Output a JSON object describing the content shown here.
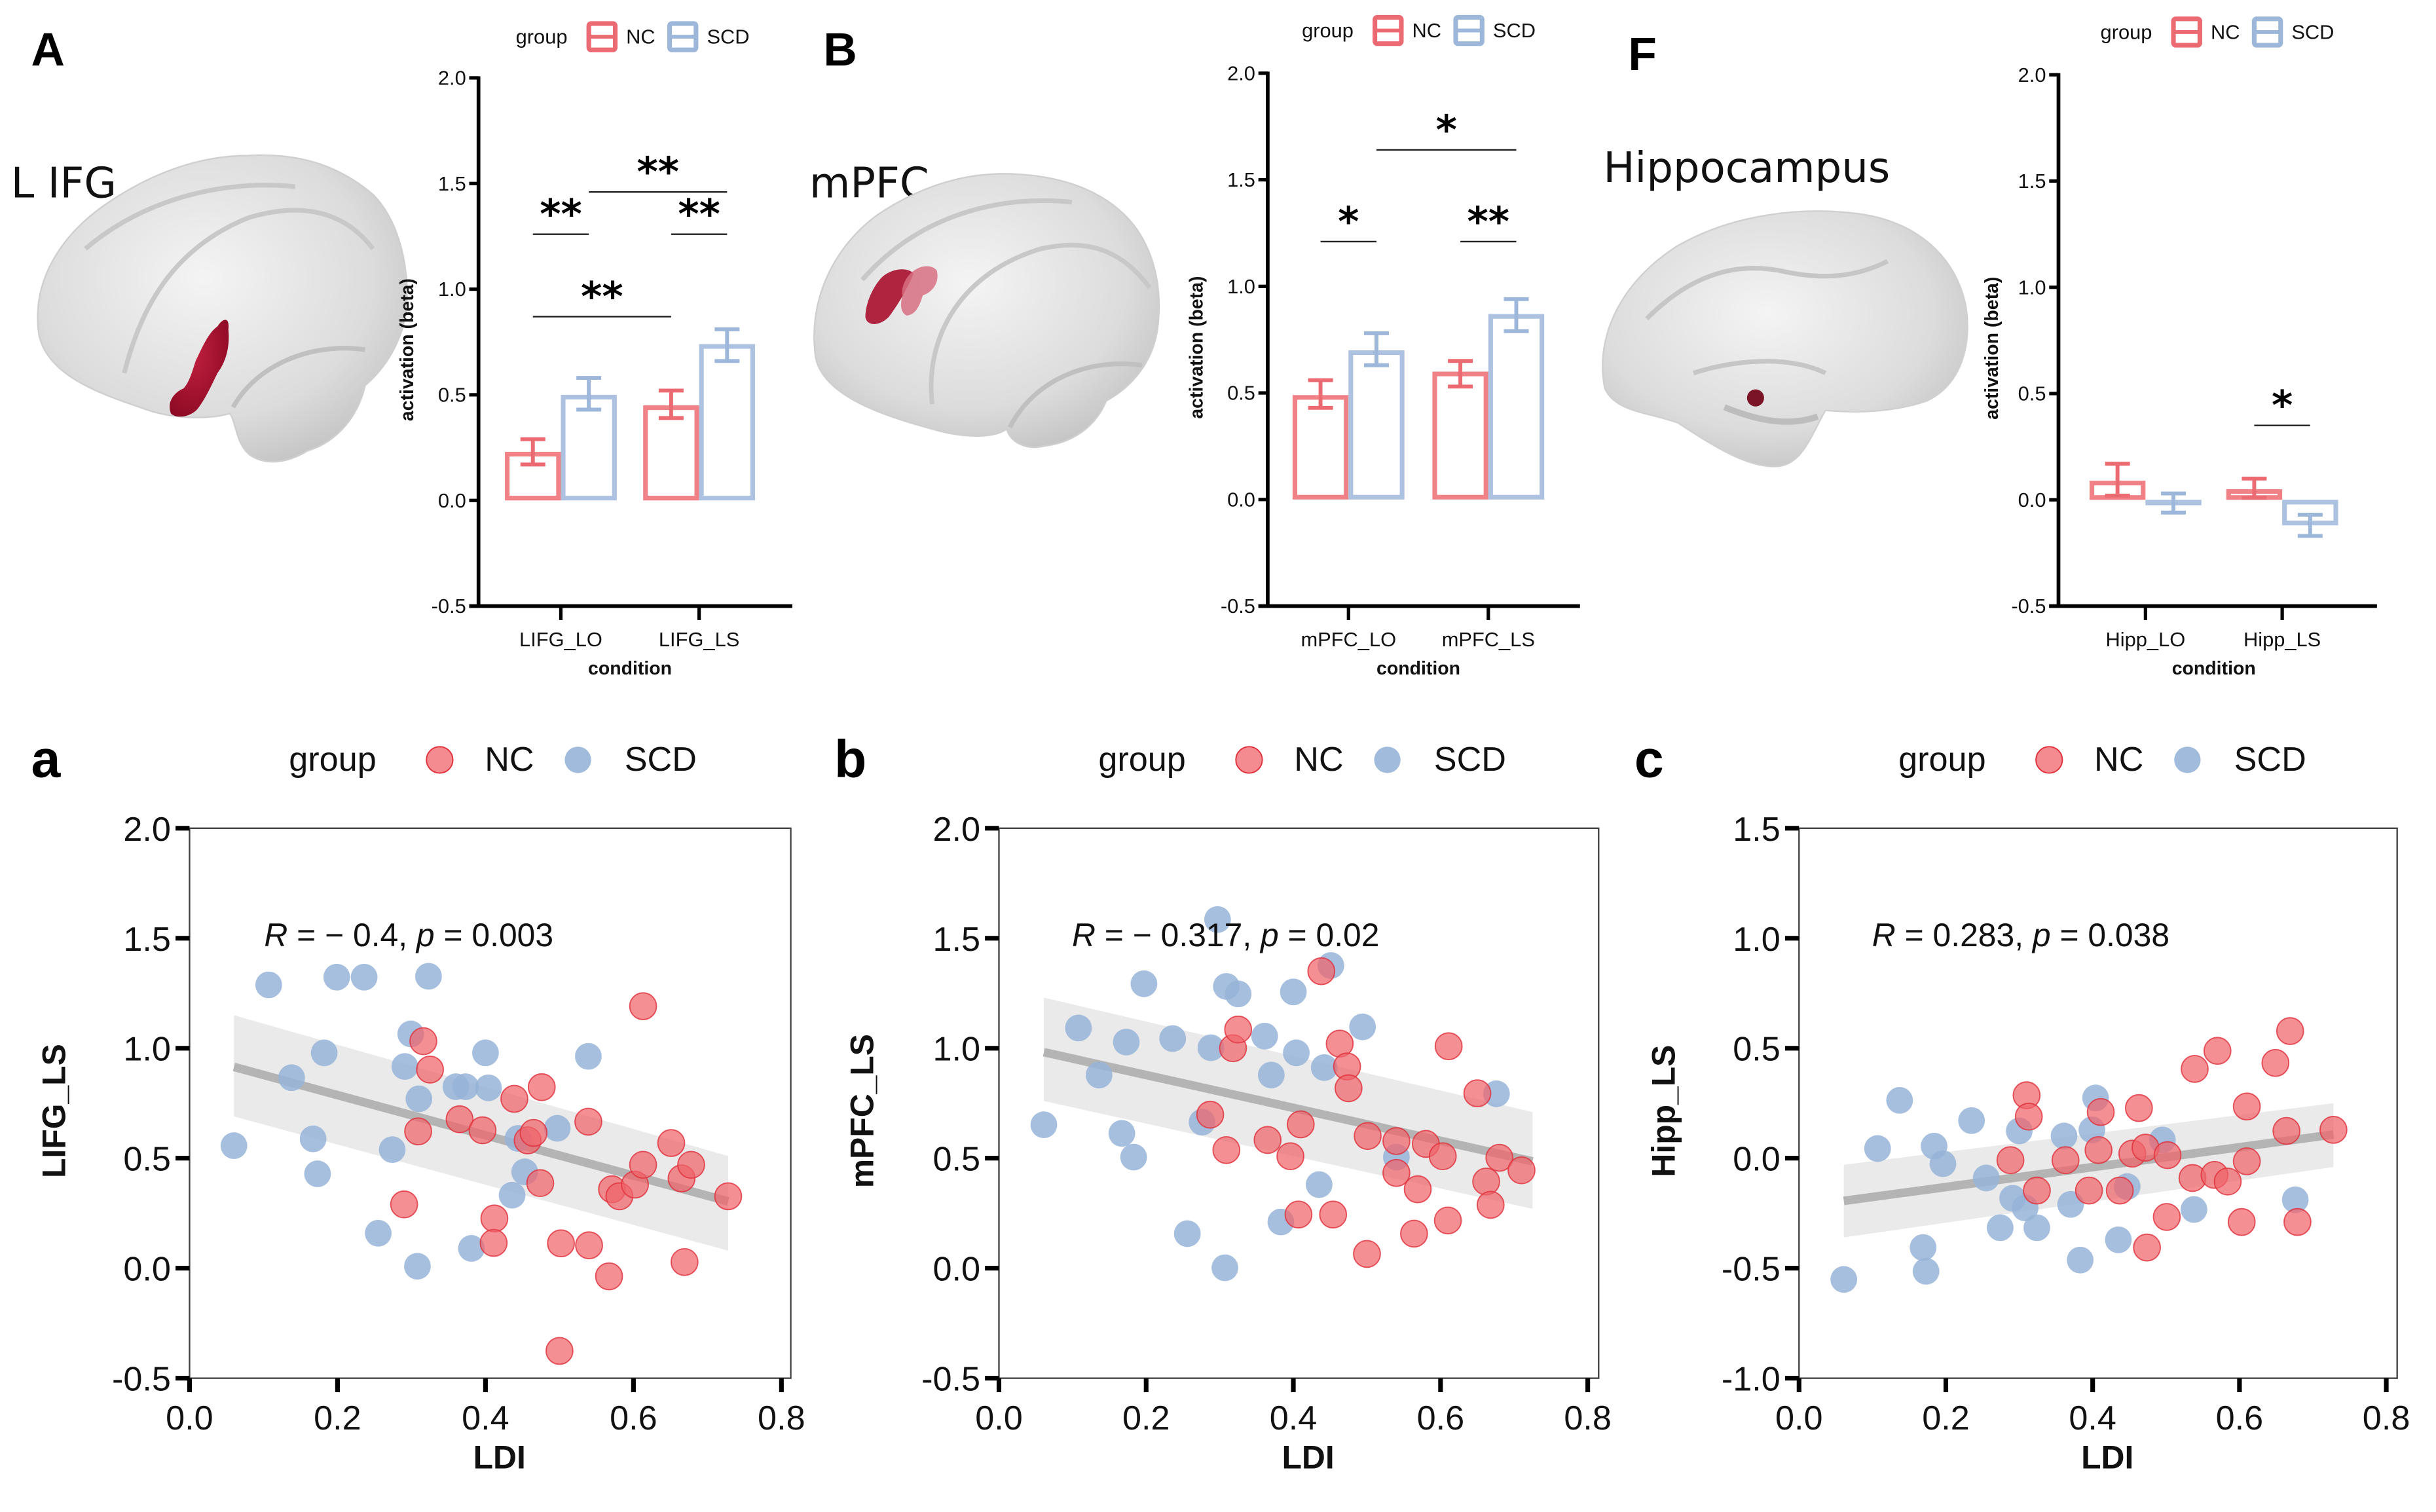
{
  "colors": {
    "nc": "#EC6B72",
    "nc_point": "#F0646B",
    "scd": "#9DB7DA",
    "scd_point": "#97B4D8",
    "fit_line": "#B4B4B4",
    "ci_band": "#E6E6E6",
    "roi": "#A8102E"
  },
  "legend": {
    "title": "group",
    "nc": "NC",
    "scd": "SCD"
  },
  "panels_top": [
    {
      "letter": "A",
      "region": "L IFG"
    },
    {
      "letter": "B",
      "region": "mPFC"
    },
    {
      "letter": "F",
      "region": "Hippocampus"
    }
  ],
  "panels_bottom": [
    {
      "letter": "a"
    },
    {
      "letter": "b"
    },
    {
      "letter": "c"
    }
  ],
  "chart_data": [
    {
      "id": "A",
      "type": "bar",
      "title": "L IFG",
      "xlabel": "condition",
      "ylabel": "activation (beta)",
      "ylim": [
        -0.5,
        2.0
      ],
      "yticks": [
        "-0.5",
        "0.0",
        "0.5",
        "1.0",
        "1.5",
        "2.0"
      ],
      "categories": [
        "LIFG_LO",
        "LIFG_LS"
      ],
      "legend_position": "top",
      "series": [
        {
          "name": "NC",
          "values": [
            0.23,
            0.45
          ],
          "err_low": [
            0.17,
            0.39
          ],
          "err_high": [
            0.29,
            0.52
          ]
        },
        {
          "name": "SCD",
          "values": [
            0.5,
            0.74
          ],
          "err_low": [
            0.43,
            0.66
          ],
          "err_high": [
            0.58,
            0.81
          ]
        }
      ],
      "significance": [
        {
          "label": "**",
          "from": "LIFG_LO:NC",
          "to": "LIFG_LO:SCD",
          "y": 1.26
        },
        {
          "label": "**",
          "from": "LIFG_LS:NC",
          "to": "LIFG_LS:SCD",
          "y": 1.26
        },
        {
          "label": "**",
          "from": "LIFG_LO:SCD",
          "to": "LIFG_LS:SCD",
          "y": 1.46
        },
        {
          "label": "**",
          "from": "LIFG_LO:NC",
          "to": "LIFG_LS:NC",
          "y": 0.87
        }
      ]
    },
    {
      "id": "B",
      "type": "bar",
      "title": "mPFC",
      "xlabel": "condition",
      "ylabel": "activation (beta)",
      "ylim": [
        -0.5,
        2.0
      ],
      "yticks": [
        "-0.5",
        "0.0",
        "0.5",
        "1.0",
        "1.5",
        "2.0"
      ],
      "categories": [
        "mPFC_LO",
        "mPFC_LS"
      ],
      "legend_position": "top",
      "series": [
        {
          "name": "NC",
          "values": [
            0.49,
            0.6
          ],
          "err_low": [
            0.43,
            0.53
          ],
          "err_high": [
            0.56,
            0.65
          ]
        },
        {
          "name": "SCD",
          "values": [
            0.7,
            0.87
          ],
          "err_low": [
            0.63,
            0.79
          ],
          "err_high": [
            0.78,
            0.94
          ]
        }
      ],
      "significance": [
        {
          "label": "*",
          "from": "mPFC_LO:NC",
          "to": "mPFC_LO:SCD",
          "y": 1.21
        },
        {
          "label": "**",
          "from": "mPFC_LS:NC",
          "to": "mPFC_LS:SCD",
          "y": 1.21
        },
        {
          "label": "*",
          "from": "mPFC_LO:SCD",
          "to": "mPFC_LS:SCD",
          "y": 1.64
        }
      ]
    },
    {
      "id": "F",
      "type": "bar",
      "title": "Hippocampus",
      "xlabel": "condition",
      "ylabel": "activation (beta)",
      "ylim": [
        -0.5,
        2.0
      ],
      "yticks": [
        "-0.5",
        "0.0",
        "0.5",
        "1.0",
        "1.5",
        "2.0"
      ],
      "categories": [
        "Hipp_LO",
        "Hipp_LS"
      ],
      "legend_position": "top",
      "series": [
        {
          "name": "NC",
          "values": [
            0.09,
            0.05
          ],
          "err_low": [
            0.02,
            0.01
          ],
          "err_high": [
            0.17,
            0.1
          ]
        },
        {
          "name": "SCD",
          "values": [
            -0.02,
            -0.12
          ],
          "err_low": [
            -0.06,
            -0.17
          ],
          "err_high": [
            0.03,
            -0.07
          ]
        }
      ],
      "significance": [
        {
          "label": "*",
          "from": "Hipp_LS:NC",
          "to": "Hipp_LS:SCD",
          "y": 0.35
        }
      ]
    },
    {
      "id": "a",
      "type": "scatter",
      "xlabel": "LDI",
      "ylabel": "LIFG_LS",
      "xlim": [
        0.0,
        0.8
      ],
      "ylim": [
        -0.5,
        2.0
      ],
      "xticks": [
        "0.0",
        "0.2",
        "0.4",
        "0.6",
        "0.8"
      ],
      "yticks": [
        "-0.5",
        "0.0",
        "0.5",
        "1.0",
        "1.5",
        "2.0"
      ],
      "annotation": {
        "R": "R",
        "mid": " = − 0.4, ",
        "p": "p",
        "end": " = 0.003"
      },
      "fit": {
        "x": [
          0.06,
          0.728
        ],
        "y": [
          0.915,
          0.304
        ],
        "ci_low": [
          0.69,
          0.08
        ],
        "ci_high": [
          1.15,
          0.51
        ]
      },
      "legend_position": "top",
      "series": [
        {
          "name": "SCD",
          "points": [
            [
              0.06,
              0.557
            ],
            [
              0.107,
              1.288
            ],
            [
              0.138,
              0.866
            ],
            [
              0.167,
              0.588
            ],
            [
              0.173,
              0.429
            ],
            [
              0.182,
              0.979
            ],
            [
              0.199,
              1.323
            ],
            [
              0.236,
              1.323
            ],
            [
              0.255,
              0.159
            ],
            [
              0.274,
              0.539
            ],
            [
              0.291,
              0.917
            ],
            [
              0.299,
              1.065
            ],
            [
              0.31,
              0.77
            ],
            [
              0.308,
              0.009
            ],
            [
              0.323,
              1.327
            ],
            [
              0.36,
              0.825
            ],
            [
              0.373,
              0.825
            ],
            [
              0.381,
              0.09
            ],
            [
              0.4,
              0.979
            ],
            [
              0.404,
              0.82
            ],
            [
              0.436,
              0.332
            ],
            [
              0.444,
              0.59
            ],
            [
              0.453,
              0.438
            ],
            [
              0.497,
              0.636
            ],
            [
              0.539,
              0.963
            ]
          ]
        },
        {
          "name": "NC",
          "points": [
            [
              0.29,
              0.29
            ],
            [
              0.309,
              0.622
            ],
            [
              0.316,
              1.032
            ],
            [
              0.325,
              0.903
            ],
            [
              0.365,
              0.677
            ],
            [
              0.396,
              0.627
            ],
            [
              0.412,
              0.226
            ],
            [
              0.411,
              0.115
            ],
            [
              0.439,
              0.77
            ],
            [
              0.457,
              0.581
            ],
            [
              0.465,
              0.615
            ],
            [
              0.474,
              0.387
            ],
            [
              0.476,
              0.823
            ],
            [
              0.502,
              0.113
            ],
            [
              0.5,
              -0.376
            ],
            [
              0.539,
              0.666
            ],
            [
              0.54,
              0.104
            ],
            [
              0.571,
              0.359
            ],
            [
              0.567,
              -0.037
            ],
            [
              0.581,
              0.327
            ],
            [
              0.602,
              0.38
            ],
            [
              0.613,
              0.47
            ],
            [
              0.613,
              1.191
            ],
            [
              0.651,
              0.569
            ],
            [
              0.665,
              0.408
            ],
            [
              0.669,
              0.028
            ],
            [
              0.678,
              0.47
            ],
            [
              0.728,
              0.327
            ]
          ]
        }
      ]
    },
    {
      "id": "b",
      "type": "scatter",
      "xlabel": "LDI",
      "ylabel": "mPFC_LS",
      "xlim": [
        0.0,
        0.8
      ],
      "ylim": [
        -0.5,
        2.0
      ],
      "xticks": [
        "0.0",
        "0.2",
        "0.4",
        "0.6",
        "0.8"
      ],
      "yticks": [
        "-0.5",
        "0.0",
        "0.5",
        "1.0",
        "1.5",
        "2.0"
      ],
      "annotation": {
        "R": "R",
        "mid": " = − 0.317, ",
        "p": "p",
        "end": " = 0.02"
      },
      "fit": {
        "x": [
          0.061,
          0.725
        ],
        "y": [
          0.982,
          0.486
        ],
        "ci_low": [
          0.76,
          0.27
        ],
        "ci_high": [
          1.23,
          0.71
        ]
      },
      "legend_position": "top",
      "series": [
        {
          "name": "SCD",
          "points": [
            [
              0.061,
              0.652
            ],
            [
              0.108,
              1.092
            ],
            [
              0.136,
              0.878
            ],
            [
              0.167,
              0.613
            ],
            [
              0.173,
              1.028
            ],
            [
              0.183,
              0.505
            ],
            [
              0.197,
              1.293
            ],
            [
              0.236,
              1.044
            ],
            [
              0.256,
              0.157
            ],
            [
              0.276,
              0.664
            ],
            [
              0.288,
              1.002
            ],
            [
              0.297,
              1.585
            ],
            [
              0.307,
              0.002
            ],
            [
              0.309,
              1.281
            ],
            [
              0.325,
              1.247
            ],
            [
              0.361,
              1.055
            ],
            [
              0.37,
              0.878
            ],
            [
              0.383,
              0.21
            ],
            [
              0.4,
              1.256
            ],
            [
              0.404,
              0.979
            ],
            [
              0.435,
              0.38
            ],
            [
              0.442,
              0.912
            ],
            [
              0.451,
              1.376
            ],
            [
              0.494,
              1.097
            ],
            [
              0.54,
              0.505
            ],
            [
              0.676,
              0.793
            ]
          ]
        },
        {
          "name": "NC",
          "points": [
            [
              0.287,
              0.698
            ],
            [
              0.309,
              0.537
            ],
            [
              0.318,
              1.0
            ],
            [
              0.325,
              1.085
            ],
            [
              0.365,
              0.583
            ],
            [
              0.396,
              0.509
            ],
            [
              0.407,
              0.244
            ],
            [
              0.41,
              0.654
            ],
            [
              0.438,
              1.35
            ],
            [
              0.454,
              0.244
            ],
            [
              0.463,
              1.021
            ],
            [
              0.473,
              0.917
            ],
            [
              0.475,
              0.818
            ],
            [
              0.5,
              0.065
            ],
            [
              0.501,
              0.601
            ],
            [
              0.54,
              0.433
            ],
            [
              0.54,
              0.578
            ],
            [
              0.564,
              0.157
            ],
            [
              0.569,
              0.359
            ],
            [
              0.58,
              0.565
            ],
            [
              0.603,
              0.509
            ],
            [
              0.61,
              0.217
            ],
            [
              0.611,
              1.009
            ],
            [
              0.65,
              0.795
            ],
            [
              0.662,
              0.394
            ],
            [
              0.668,
              0.288
            ],
            [
              0.68,
              0.502
            ],
            [
              0.71,
              0.445
            ]
          ]
        }
      ]
    },
    {
      "id": "c",
      "type": "scatter",
      "xlabel": "LDI",
      "ylabel": "Hipp_LS",
      "xlim": [
        0.0,
        0.8
      ],
      "ylim": [
        -1.0,
        1.5
      ],
      "xticks": [
        "0.0",
        "0.2",
        "0.4",
        "0.6",
        "0.8"
      ],
      "yticks": [
        "-1.0",
        "-0.5",
        "0.0",
        "0.5",
        "1.0",
        "1.5"
      ],
      "annotation": {
        "R": "R",
        "mid": " = 0.283, ",
        "p": "p",
        "end": " = 0.038"
      },
      "fit": {
        "x": [
          0.061,
          0.728
        ],
        "y": [
          -0.194,
          0.108
        ],
        "ci_low": [
          -0.36,
          -0.04
        ],
        "ci_high": [
          -0.03,
          0.25
        ]
      },
      "legend_position": "top",
      "series": [
        {
          "name": "SCD",
          "points": [
            [
              0.061,
              -0.551
            ],
            [
              0.107,
              0.044
            ],
            [
              0.137,
              0.263
            ],
            [
              0.169,
              -0.406
            ],
            [
              0.173,
              -0.514
            ],
            [
              0.184,
              0.055
            ],
            [
              0.196,
              -0.025
            ],
            [
              0.235,
              0.171
            ],
            [
              0.255,
              -0.09
            ],
            [
              0.274,
              -0.316
            ],
            [
              0.291,
              -0.182
            ],
            [
              0.3,
              0.124
            ],
            [
              0.308,
              -0.226
            ],
            [
              0.324,
              -0.316
            ],
            [
              0.361,
              0.101
            ],
            [
              0.37,
              -0.21
            ],
            [
              0.383,
              -0.463
            ],
            [
              0.399,
              0.129
            ],
            [
              0.404,
              0.274
            ],
            [
              0.435,
              -0.371
            ],
            [
              0.447,
              -0.129
            ],
            [
              0.495,
              0.083
            ],
            [
              0.538,
              -0.233
            ],
            [
              0.676,
              -0.189
            ]
          ]
        },
        {
          "name": "NC",
          "points": [
            [
              0.288,
              -0.009
            ],
            [
              0.31,
              0.286
            ],
            [
              0.313,
              0.189
            ],
            [
              0.324,
              -0.147
            ],
            [
              0.363,
              -0.009
            ],
            [
              0.395,
              -0.147
            ],
            [
              0.408,
              0.037
            ],
            [
              0.411,
              0.21
            ],
            [
              0.437,
              -0.147
            ],
            [
              0.454,
              0.021
            ],
            [
              0.463,
              0.228
            ],
            [
              0.472,
              0.048
            ],
            [
              0.474,
              -0.406
            ],
            [
              0.501,
              -0.267
            ],
            [
              0.502,
              0.014
            ],
            [
              0.536,
              -0.09
            ],
            [
              0.539,
              0.406
            ],
            [
              0.566,
              -0.076
            ],
            [
              0.57,
              0.488
            ],
            [
              0.584,
              -0.106
            ],
            [
              0.603,
              -0.29
            ],
            [
              0.61,
              -0.014
            ],
            [
              0.61,
              0.235
            ],
            [
              0.649,
              0.433
            ],
            [
              0.664,
              0.124
            ],
            [
              0.669,
              0.578
            ],
            [
              0.679,
              -0.29
            ],
            [
              0.728,
              0.129
            ]
          ]
        }
      ]
    }
  ]
}
